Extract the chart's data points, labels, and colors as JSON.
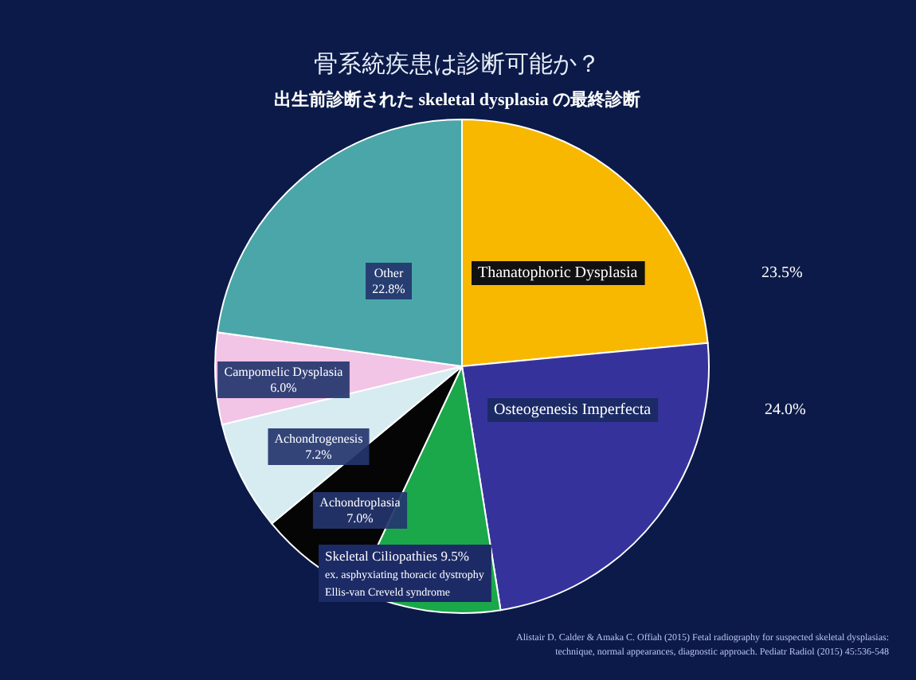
{
  "chart_data": {
    "type": "pie",
    "title": "骨系統疾患は診断可能か？",
    "subtitle": "出生前診断された skeletal dysplasia の最終診断",
    "categories": [
      "Thanatophoric Dysplasia",
      "Osteogenesis Imperfecta",
      "Skeletal Ciliopathies",
      "Achondroplasia",
      "Achondrogenesis",
      "Campomelic Dysplasia",
      "Other"
    ],
    "values": [
      23.5,
      24.0,
      9.5,
      7.0,
      7.2,
      6.0,
      22.8
    ],
    "value_labels": [
      "23.5%",
      "24.0%",
      "9.5%",
      "7.0%",
      "7.2%",
      "6.0%",
      "22.8%"
    ],
    "colors": [
      "#f8b800",
      "#35339b",
      "#1aa84a",
      "#050505",
      "#d6ecf0",
      "#f2c4e6",
      "#4aa6a8"
    ],
    "annotations": [
      "ex.   asphyxiating thoracic dystrophy\nEllis-van Creveld syndrome",
      "Alistair D. Calder & Amaka C. Offiah (2015) Fetal radiography for suspected skeletal dysplasias:\ntechnique, normal appearances, diagnostic approach. Pediatr Radiol (2015) 45:536-548"
    ]
  }
}
